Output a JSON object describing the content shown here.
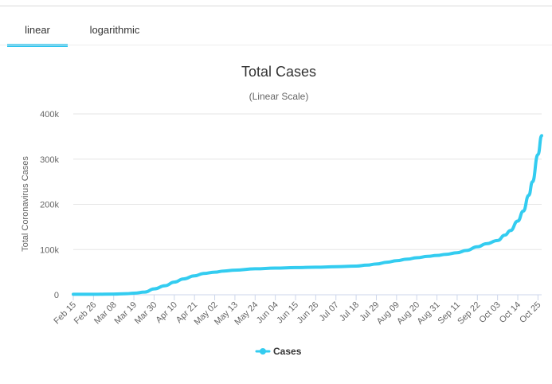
{
  "tabs": [
    {
      "label": "linear",
      "active": true
    },
    {
      "label": "logarithmic",
      "active": false
    }
  ],
  "colors": {
    "series": "#33ccf0",
    "tab_active": "#2fc5ef",
    "grid": "#e6e6e6"
  },
  "chart_data": {
    "type": "line",
    "title": "Total Cases",
    "subtitle": "(Linear Scale)",
    "ylabel": "Total Coronavirus Cases",
    "xlabel": "",
    "ylim": [
      0,
      400000
    ],
    "y_ticks": [
      0,
      100000,
      200000,
      300000,
      400000
    ],
    "y_tick_labels": [
      "0",
      "100k",
      "200k",
      "300k",
      "400k"
    ],
    "x_tick_labels": [
      "Feb 15",
      "Feb 26",
      "Mar 08",
      "Mar 19",
      "Mar 30",
      "Apr 10",
      "Apr 21",
      "May 02",
      "May 13",
      "May 24",
      "Jun 04",
      "Jun 15",
      "Jun 26",
      "Jul 07",
      "Jul 18",
      "Jul 29",
      "Aug 09",
      "Aug 20",
      "Aug 31",
      "Sep 11",
      "Sep 22",
      "Oct 03",
      "Oct 14",
      "Oct 25"
    ],
    "grid": true,
    "legend_position": "bottom-center",
    "series": [
      {
        "name": "Cases",
        "x": [
          "Feb 15",
          "Feb 26",
          "Mar 08",
          "Mar 15",
          "Mar 19",
          "Mar 25",
          "Mar 30",
          "Apr 05",
          "Apr 10",
          "Apr 15",
          "Apr 21",
          "Apr 26",
          "May 02",
          "May 07",
          "May 13",
          "May 24",
          "Jun 04",
          "Jun 15",
          "Jun 26",
          "Jul 07",
          "Jul 18",
          "Jul 24",
          "Jul 29",
          "Aug 04",
          "Aug 09",
          "Aug 15",
          "Aug 20",
          "Aug 26",
          "Aug 31",
          "Sep 05",
          "Sep 11",
          "Sep 16",
          "Sep 22",
          "Sep 27",
          "Oct 03",
          "Oct 07",
          "Oct 10",
          "Oct 14",
          "Oct 17",
          "Oct 20",
          "Oct 22",
          "Oct 25",
          "Oct 27"
        ],
        "values": [
          1000,
          1000,
          1500,
          2500,
          3500,
          6000,
          13000,
          20000,
          28000,
          35000,
          42000,
          47000,
          50000,
          52500,
          54500,
          57500,
          59000,
          60000,
          61000,
          62000,
          63500,
          65500,
          68000,
          72000,
          75500,
          79000,
          82000,
          85000,
          87000,
          89500,
          93000,
          98000,
          106000,
          113000,
          120000,
          132000,
          142000,
          163000,
          185000,
          220000,
          250000,
          310000,
          352000
        ]
      }
    ]
  }
}
